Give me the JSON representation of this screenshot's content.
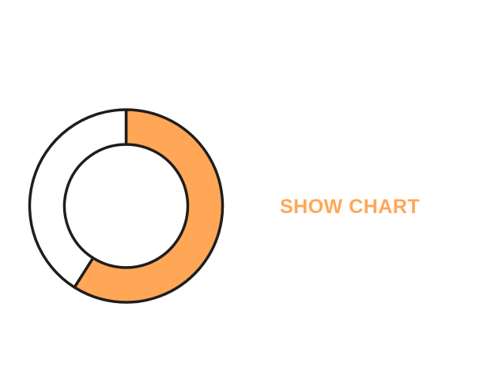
{
  "chart_data": {
    "type": "pie",
    "variant": "donut",
    "values": [
      0.59,
      0.41
    ],
    "colors": [
      "#FFA756",
      "#FFFFFF"
    ],
    "stroke_color": "#1E1E1E"
  },
  "controls": {
    "show_chart_label": "SHOW CHART",
    "accent_color": "#FFA756"
  }
}
